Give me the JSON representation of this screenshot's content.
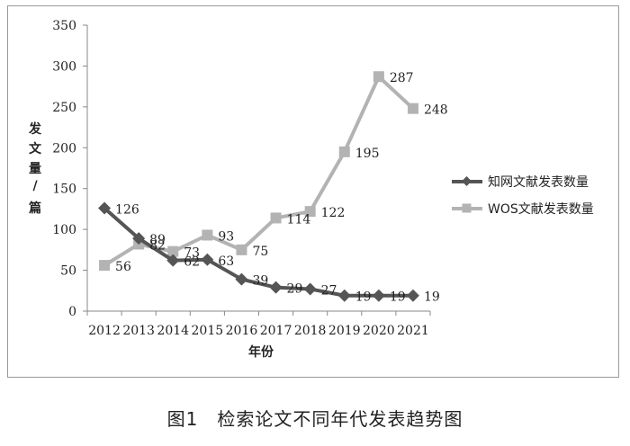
{
  "caption": "图1　检索论文不同年代发表趋势图",
  "chart_data": {
    "type": "line",
    "x": [
      "2012",
      "2013",
      "2014",
      "2015",
      "2016",
      "2017",
      "2018",
      "2019",
      "2020",
      "2021"
    ],
    "ylim": [
      0,
      350
    ],
    "yticks": [
      "0",
      "50",
      "100",
      "150",
      "200",
      "250",
      "300",
      "350"
    ],
    "ylabel_chars": [
      "发",
      "文",
      "量",
      "/",
      "篇"
    ],
    "xlabel": "年份",
    "grid": false,
    "legend_position": "right",
    "series": [
      {
        "name": "知网文献发表数量",
        "values": [
          126,
          89,
          62,
          63,
          39,
          29,
          27,
          19,
          19,
          19
        ],
        "labels": [
          "126",
          "89",
          "62",
          "63",
          "39",
          "29",
          "27",
          "19",
          "19",
          "19"
        ],
        "color": "#555555",
        "marker": "diamond"
      },
      {
        "name": "WOS文献发表数量",
        "values": [
          56,
          82,
          73,
          93,
          75,
          114,
          122,
          195,
          287,
          248
        ],
        "labels": [
          "56",
          "82",
          "73",
          "93",
          "75",
          "114",
          "122",
          "195",
          "287",
          "248"
        ],
        "color": "#b3b3b3",
        "marker": "square"
      }
    ]
  }
}
